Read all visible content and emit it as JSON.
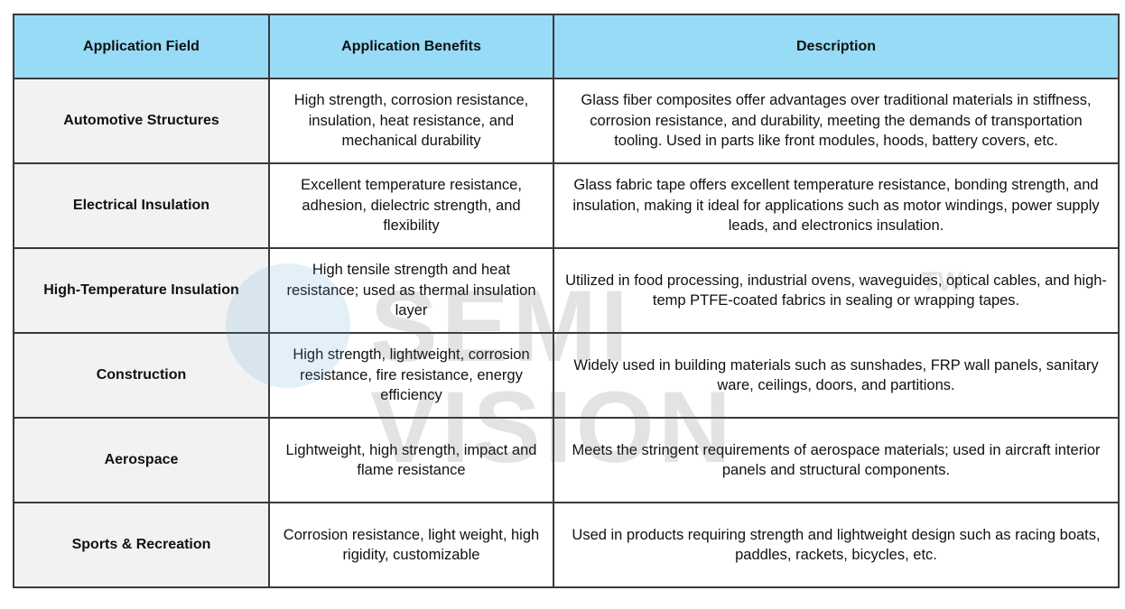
{
  "table": {
    "headers": [
      "Application Field",
      "Application Benefits",
      "Description"
    ],
    "colors": {
      "header_bg": "#97dbf7",
      "field_bg": "#f2f2f2",
      "border": "#3a3a3a"
    },
    "rows": [
      {
        "field": "Automotive Structures",
        "benefits": "High strength, corrosion resistance, insulation, heat resistance, and mechanical durability",
        "description": "Glass fiber composites offer advantages over traditional materials in stiffness, corrosion resistance, and durability, meeting the demands of transportation tooling. Used in parts like front modules, hoods, battery covers, etc."
      },
      {
        "field": "Electrical Insulation",
        "benefits": "Excellent temperature resistance, adhesion, dielectric strength, and flexibility",
        "description": "Glass fabric tape offers excellent temperature resistance, bonding strength, and insulation, making it ideal for applications such as motor windings, power supply leads, and electronics insulation."
      },
      {
        "field": "High-Temperature Insulation",
        "benefits": "High tensile strength and heat resistance; used as thermal insulation layer",
        "description": "Utilized in food processing, industrial ovens, waveguides, optical cables, and high-temp PTFE-coated fabrics in sealing or wrapping tapes."
      },
      {
        "field": "Construction",
        "benefits": "High strength, lightweight, corrosion resistance, fire resistance, energy efficiency",
        "description": "Widely used in building materials such as sunshades, FRP wall panels, sanitary ware, ceilings, doors, and partitions."
      },
      {
        "field": "Aerospace",
        "benefits": "Lightweight, high strength, impact and flame resistance",
        "description": "Meets the stringent requirements of aerospace materials; used in aircraft interior panels and structural components."
      },
      {
        "field": "Sports & Recreation",
        "benefits": "Corrosion resistance, light weight, high rigidity, customizable",
        "description": "Used in products requiring strength and lightweight design such as racing boats, paddles, rackets, bicycles, etc."
      }
    ]
  },
  "watermark": {
    "text": "SEMI VISION",
    "suffix": "TW"
  }
}
